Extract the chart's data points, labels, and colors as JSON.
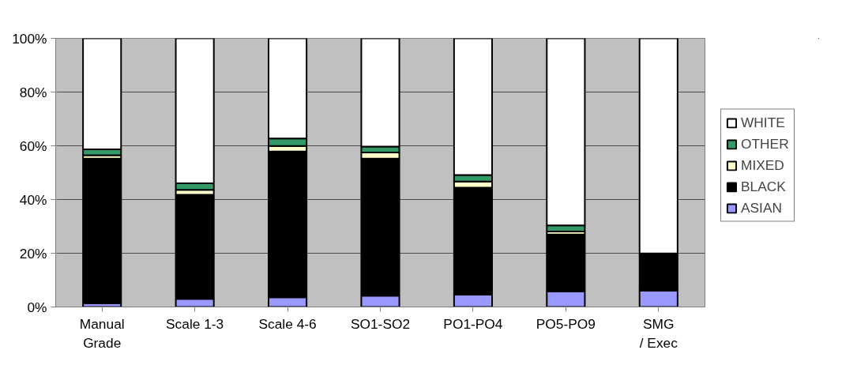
{
  "chart_data": {
    "type": "bar",
    "stacked": true,
    "categories": [
      "Manual Grade",
      "Scale 1-3",
      "Scale 4-6",
      "SO1-SO2",
      "PO1-PO4",
      "PO5-PO9",
      "SMG / Exec"
    ],
    "series": [
      {
        "name": "ASIAN",
        "color": "#9999ff",
        "values": [
          1.4,
          3.0,
          3.6,
          4.2,
          4.6,
          5.8,
          6.1
        ]
      },
      {
        "name": "BLACK",
        "color": "#000000",
        "values": [
          53.8,
          38.8,
          54.3,
          51.0,
          39.8,
          21.2,
          13.8
        ]
      },
      {
        "name": "MIXED",
        "color": "#ffffcc",
        "values": [
          1.3,
          1.8,
          2.0,
          2.3,
          2.3,
          1.1,
          0
        ]
      },
      {
        "name": "OTHER",
        "color": "#339966",
        "values": [
          2.2,
          2.4,
          2.8,
          2.2,
          2.4,
          2.3,
          0
        ]
      },
      {
        "name": "WHITE",
        "color": "#ffffff",
        "values": [
          41.3,
          54.0,
          37.3,
          40.3,
          50.9,
          69.6,
          80.1
        ]
      }
    ],
    "ylim": [
      0,
      100
    ],
    "yticks": [
      {
        "value": 0,
        "label": "0%"
      },
      {
        "value": 20,
        "label": "20%"
      },
      {
        "value": 40,
        "label": "40%"
      },
      {
        "value": 60,
        "label": "60%"
      },
      {
        "value": 80,
        "label": "80%"
      },
      {
        "value": 100,
        "label": "100%"
      }
    ],
    "grid": "y",
    "legend": "right"
  }
}
